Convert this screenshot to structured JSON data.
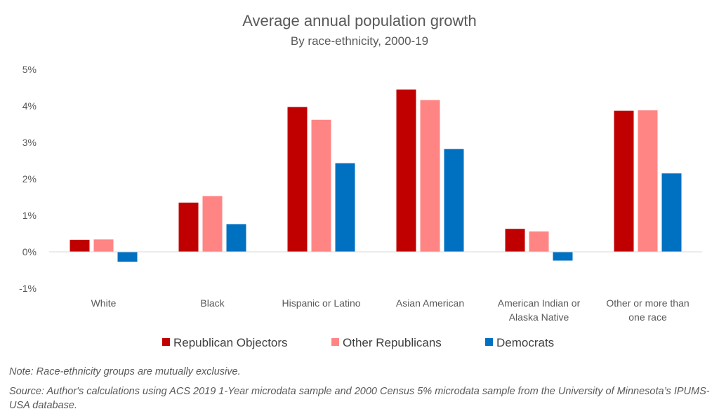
{
  "chart_data": {
    "type": "bar",
    "title": "Average annual population growth",
    "subtitle": "By race-ethnicity, 2000-19",
    "categories": [
      [
        "White"
      ],
      [
        "Black"
      ],
      [
        "Hispanic or Latino"
      ],
      [
        "Asian American"
      ],
      [
        "American Indian or",
        "Alaska Native"
      ],
      [
        "Other or more than",
        "one race"
      ]
    ],
    "series": [
      {
        "name": "Republican Objectors",
        "color": "#c00000",
        "values": [
          0.33,
          1.35,
          3.97,
          4.45,
          0.63,
          3.87
        ]
      },
      {
        "name": "Other Republicans",
        "color": "#ff8585",
        "values": [
          0.34,
          1.53,
          3.62,
          4.16,
          0.56,
          3.88
        ]
      },
      {
        "name": "Democrats",
        "color": "#0070c0",
        "values": [
          -0.27,
          0.76,
          2.43,
          2.82,
          -0.24,
          2.15
        ]
      }
    ],
    "ylim": [
      -1,
      5
    ],
    "yticks": [
      -1,
      0,
      1,
      2,
      3,
      4,
      5
    ],
    "ytick_labels": [
      "-1%",
      "0%",
      "1%",
      "2%",
      "3%",
      "4%",
      "5%"
    ],
    "legend_position": "bottom",
    "grid": false
  },
  "notes": {
    "note": "Note: Race-ethnicity groups are mutually exclusive.",
    "source": "Source: Author's calculations using ACS 2019 1-Year microdata sample and 2000 Census 5% microdata sample from the University of Minnesota’s IPUMS-USA database."
  }
}
